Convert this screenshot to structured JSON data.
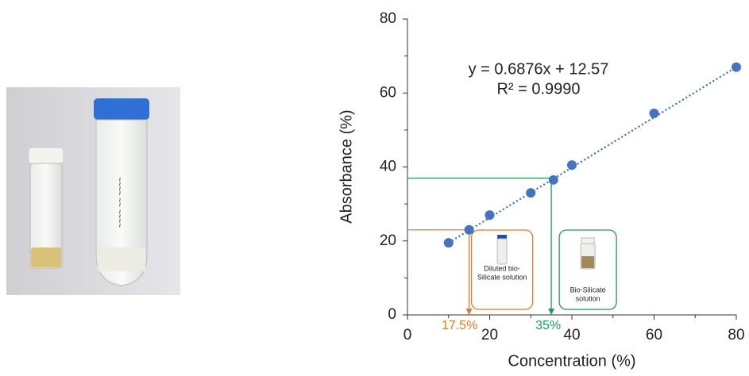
{
  "chart_data": {
    "type": "scatter",
    "x": [
      10,
      15,
      20,
      30,
      35.5,
      40,
      60,
      80
    ],
    "values": [
      19.5,
      23,
      27,
      33,
      36.5,
      40.5,
      54.5,
      67
    ],
    "color": "#4472c4",
    "xlabel": "Concentration (%)",
    "ylabel": "Absorbance (%)",
    "xlim": [
      0,
      80
    ],
    "ylim": [
      0,
      80
    ],
    "xticks": [
      0,
      20,
      40,
      60,
      80
    ],
    "yticks": [
      0,
      20,
      40,
      60,
      80
    ],
    "equation": "y = 0.6876x + 12.57",
    "r_squared": "R² = 0.9990",
    "reference_lines": [
      {
        "label": "17.5%",
        "color": "#e07b28",
        "x": 15,
        "y": 23,
        "caption": [
          "Diluted bio-",
          "Silicate solution"
        ]
      },
      {
        "label": "35%",
        "color": "#1f9d55",
        "x": 35,
        "y": 37,
        "caption": [
          "Bio-Silicate",
          "solution"
        ]
      }
    ]
  }
}
